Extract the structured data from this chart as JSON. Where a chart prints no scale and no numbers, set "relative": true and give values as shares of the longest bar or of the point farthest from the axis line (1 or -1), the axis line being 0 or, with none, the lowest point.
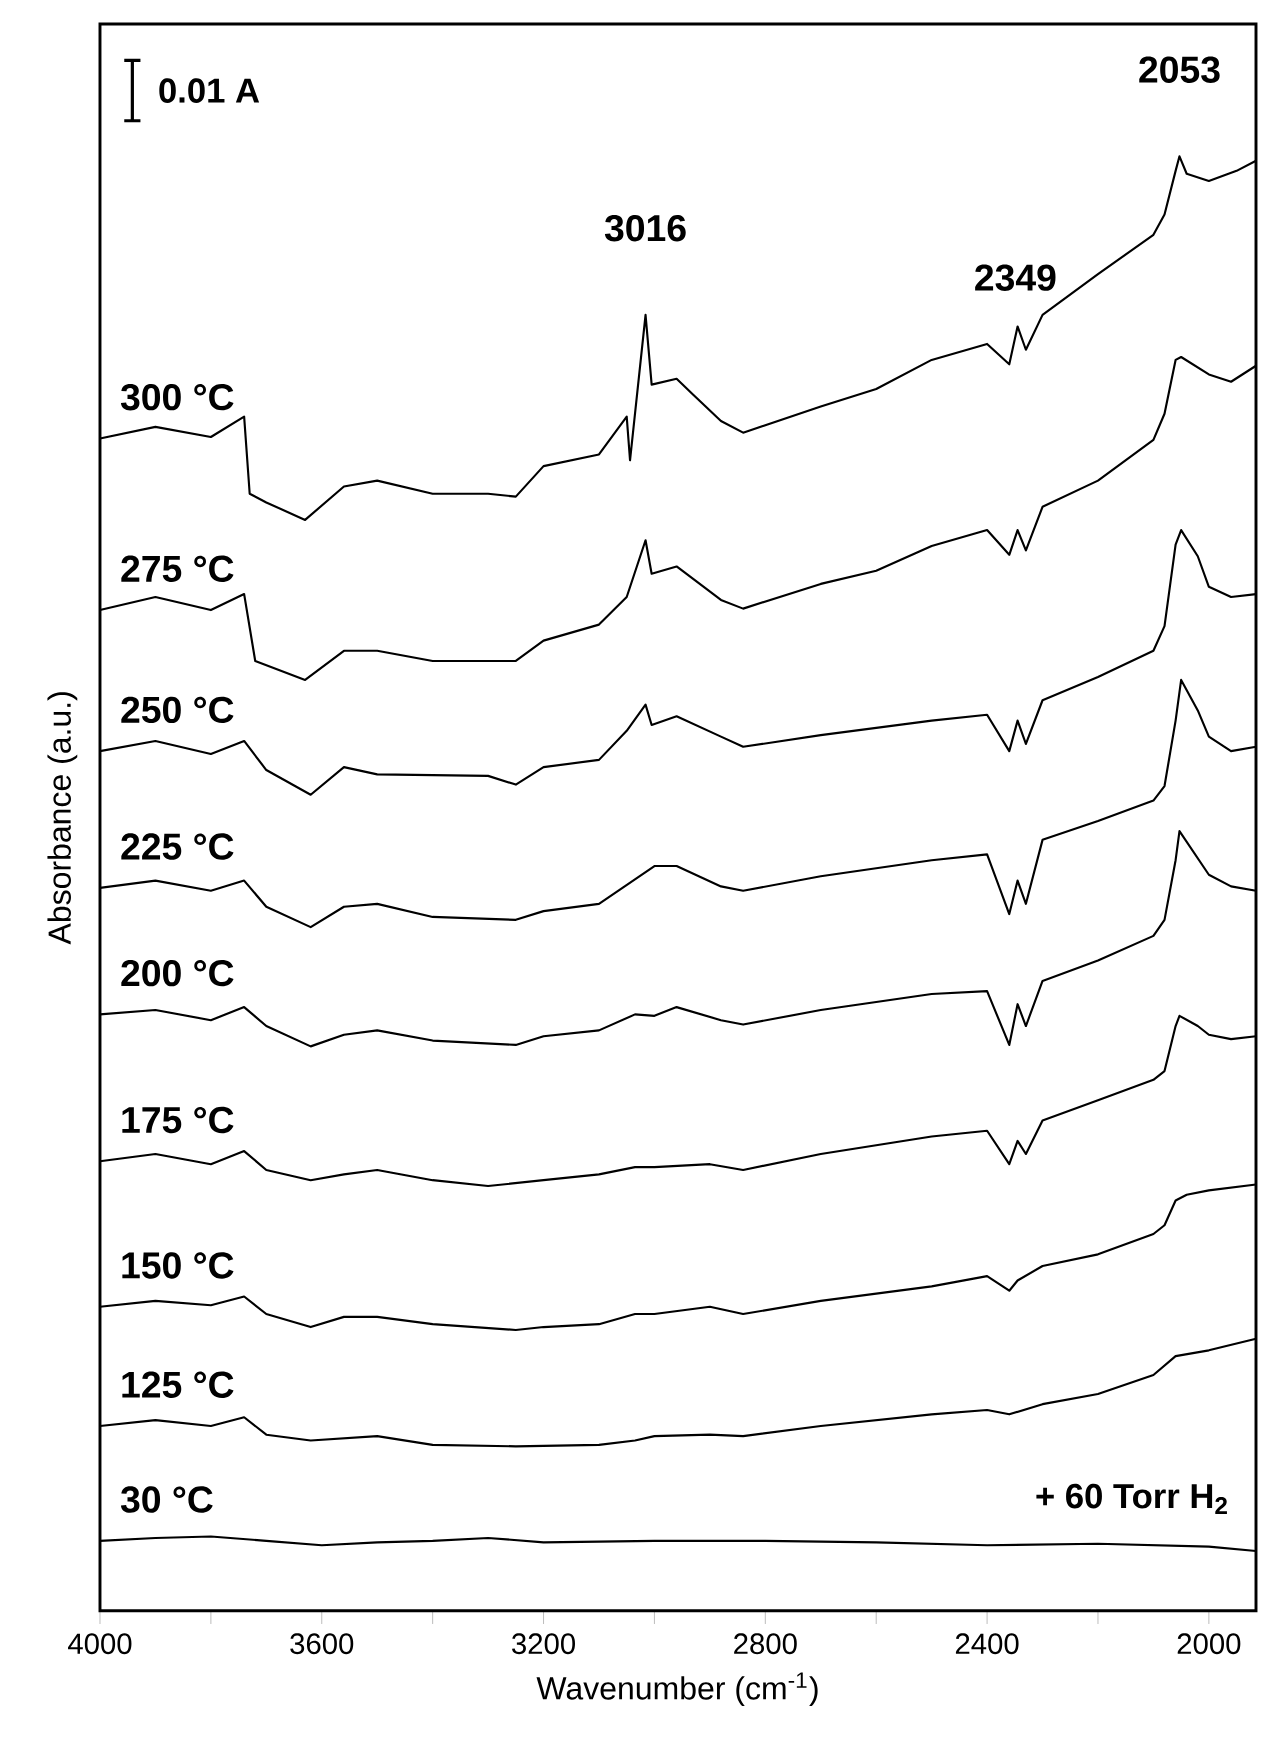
{
  "chart_data": {
    "type": "line",
    "relative": true,
    "xlabel": "Wavenumber (cm$^{-1}$)",
    "ylabel": "Absorbance (a.u.)",
    "xlim": [
      4000,
      1915
    ],
    "xticks": [
      4000,
      {
        "value": 3800,
        "label": null
      },
      3600,
      {
        "value": 3400,
        "label": null
      },
      3200,
      {
        "value": 3000,
        "label": null
      },
      2800,
      {
        "value": 2600,
        "label": null
      },
      2400,
      {
        "value": 2200,
        "label": null
      },
      2000
    ],
    "annotations": [
      "0.01 A",
      {
        "text": "3016",
        "x": 3016,
        "y": 0.891
      },
      {
        "text": "2349",
        "x": 2349,
        "y": 0.857
      },
      {
        "text": "2053",
        "x": 2053,
        "y": 1.0
      },
      "+ 60 Torr H$_{2}$"
    ],
    "series": [
      {
        "name": "300 °C",
        "color": "#000000",
        "x": [
          4000,
          3900,
          3800,
          3740,
          3730,
          3700,
          3630,
          3560,
          3500,
          3400,
          3300,
          3250,
          3200,
          3100,
          3050,
          3044,
          3016,
          3005,
          2960,
          2930,
          2880,
          2840,
          2700,
          2600,
          2500,
          2400,
          2360,
          2345,
          2330,
          2300,
          2200,
          2100,
          2080,
          2060,
          2053,
          2040,
          2000,
          1950,
          1915
        ],
        "values": [
          0.806,
          0.814,
          0.807,
          0.821,
          0.768,
          0.762,
          0.75,
          0.773,
          0.777,
          0.768,
          0.768,
          0.766,
          0.787,
          0.795,
          0.821,
          0.791,
          0.891,
          0.843,
          0.847,
          0.836,
          0.818,
          0.81,
          0.828,
          0.84,
          0.86,
          0.871,
          0.857,
          0.883,
          0.867,
          0.891,
          0.919,
          0.946,
          0.96,
          0.99,
          1.0,
          0.988,
          0.983,
          0.99,
          0.997
        ]
      },
      {
        "name": "275 °C",
        "color": "#000000",
        "x": [
          4000,
          3900,
          3800,
          3740,
          3720,
          3630,
          3560,
          3500,
          3400,
          3250,
          3200,
          3100,
          3050,
          3016,
          3005,
          2960,
          2880,
          2840,
          2700,
          2600,
          2500,
          2400,
          2360,
          2345,
          2330,
          2300,
          2200,
          2100,
          2080,
          2060,
          2050,
          2000,
          1960,
          1915
        ],
        "values": [
          0.688,
          0.697,
          0.688,
          0.699,
          0.653,
          0.64,
          0.66,
          0.66,
          0.653,
          0.653,
          0.667,
          0.678,
          0.697,
          0.736,
          0.713,
          0.718,
          0.695,
          0.689,
          0.706,
          0.715,
          0.732,
          0.743,
          0.726,
          0.743,
          0.729,
          0.759,
          0.777,
          0.805,
          0.823,
          0.86,
          0.862,
          0.85,
          0.845,
          0.856
        ]
      },
      {
        "name": "250 °C",
        "color": "#000000",
        "x": [
          4000,
          3900,
          3800,
          3740,
          3700,
          3620,
          3560,
          3500,
          3300,
          3250,
          3200,
          3100,
          3050,
          3016,
          3005,
          2960,
          2880,
          2840,
          2700,
          2500,
          2400,
          2360,
          2345,
          2330,
          2300,
          2200,
          2100,
          2080,
          2060,
          2050,
          2020,
          2000,
          1960,
          1915
        ],
        "values": [
          0.591,
          0.598,
          0.589,
          0.598,
          0.578,
          0.561,
          0.58,
          0.575,
          0.574,
          0.568,
          0.58,
          0.585,
          0.605,
          0.623,
          0.609,
          0.615,
          0.601,
          0.594,
          0.602,
          0.612,
          0.616,
          0.591,
          0.612,
          0.596,
          0.626,
          0.642,
          0.66,
          0.677,
          0.733,
          0.743,
          0.725,
          0.704,
          0.697,
          0.699
        ]
      },
      {
        "name": "225 °C",
        "color": "#000000",
        "x": [
          4000,
          3900,
          3800,
          3740,
          3700,
          3620,
          3560,
          3500,
          3400,
          3250,
          3200,
          3100,
          3000,
          2960,
          2880,
          2840,
          2700,
          2500,
          2400,
          2360,
          2345,
          2330,
          2300,
          2200,
          2100,
          2080,
          2060,
          2050,
          2020,
          2000,
          1960,
          1915
        ],
        "values": [
          0.497,
          0.502,
          0.495,
          0.502,
          0.484,
          0.47,
          0.484,
          0.486,
          0.477,
          0.475,
          0.481,
          0.486,
          0.512,
          0.512,
          0.498,
          0.495,
          0.505,
          0.516,
          0.52,
          0.479,
          0.502,
          0.486,
          0.53,
          0.543,
          0.557,
          0.567,
          0.612,
          0.64,
          0.619,
          0.601,
          0.591,
          0.594
        ]
      },
      {
        "name": "200 °C",
        "color": "#000000",
        "x": [
          4000,
          3900,
          3800,
          3740,
          3700,
          3620,
          3560,
          3500,
          3400,
          3250,
          3200,
          3100,
          3035,
          3000,
          2960,
          2880,
          2840,
          2700,
          2500,
          2400,
          2360,
          2345,
          2330,
          2300,
          2200,
          2100,
          2080,
          2060,
          2053,
          2000,
          1960,
          1915
        ],
        "values": [
          0.41,
          0.413,
          0.406,
          0.415,
          0.402,
          0.388,
          0.396,
          0.399,
          0.392,
          0.389,
          0.395,
          0.399,
          0.41,
          0.409,
          0.415,
          0.406,
          0.403,
          0.413,
          0.424,
          0.426,
          0.389,
          0.417,
          0.402,
          0.433,
          0.447,
          0.464,
          0.475,
          0.516,
          0.536,
          0.506,
          0.498,
          0.495
        ]
      },
      {
        "name": "175 °C",
        "color": "#000000",
        "x": [
          4000,
          3900,
          3800,
          3740,
          3700,
          3620,
          3560,
          3500,
          3400,
          3300,
          3200,
          3100,
          3035,
          3000,
          2900,
          2840,
          2700,
          2500,
          2400,
          2360,
          2345,
          2330,
          2300,
          2200,
          2100,
          2080,
          2060,
          2053,
          2020,
          2000,
          1960,
          1915
        ],
        "values": [
          0.309,
          0.314,
          0.307,
          0.316,
          0.303,
          0.296,
          0.3,
          0.303,
          0.296,
          0.292,
          0.296,
          0.3,
          0.305,
          0.305,
          0.307,
          0.303,
          0.314,
          0.326,
          0.33,
          0.307,
          0.323,
          0.314,
          0.337,
          0.351,
          0.365,
          0.371,
          0.402,
          0.409,
          0.402,
          0.396,
          0.393,
          0.395
        ]
      },
      {
        "name": "150 °C",
        "color": "#000000",
        "x": [
          4000,
          3900,
          3800,
          3740,
          3700,
          3620,
          3560,
          3500,
          3400,
          3250,
          3200,
          3100,
          3035,
          3000,
          2900,
          2840,
          2700,
          2500,
          2400,
          2360,
          2345,
          2300,
          2200,
          2100,
          2080,
          2060,
          2040,
          2000,
          1915
        ],
        "values": [
          0.209,
          0.213,
          0.21,
          0.216,
          0.204,
          0.195,
          0.202,
          0.202,
          0.197,
          0.193,
          0.195,
          0.197,
          0.204,
          0.204,
          0.209,
          0.204,
          0.213,
          0.223,
          0.23,
          0.22,
          0.227,
          0.237,
          0.245,
          0.259,
          0.265,
          0.282,
          0.286,
          0.289,
          0.293
        ]
      },
      {
        "name": "125 °C",
        "color": "#000000",
        "x": [
          4000,
          3900,
          3800,
          3740,
          3700,
          3620,
          3500,
          3400,
          3250,
          3100,
          3035,
          3000,
          2900,
          2840,
          2700,
          2500,
          2400,
          2360,
          2300,
          2200,
          2100,
          2060,
          2000,
          1915
        ],
        "values": [
          0.127,
          0.131,
          0.127,
          0.133,
          0.121,
          0.117,
          0.12,
          0.114,
          0.113,
          0.114,
          0.117,
          0.12,
          0.121,
          0.12,
          0.127,
          0.135,
          0.138,
          0.135,
          0.142,
          0.149,
          0.162,
          0.175,
          0.179,
          0.187
        ]
      },
      {
        "name": "30 °C",
        "color": "#000000",
        "x": [
          4000,
          3900,
          3800,
          3700,
          3600,
          3500,
          3400,
          3300,
          3200,
          3000,
          2800,
          2600,
          2400,
          2200,
          2000,
          1915
        ],
        "values": [
          0.048,
          0.05,
          0.051,
          0.048,
          0.045,
          0.047,
          0.048,
          0.05,
          0.047,
          0.048,
          0.048,
          0.047,
          0.045,
          0.046,
          0.044,
          0.041
        ]
      }
    ]
  }
}
